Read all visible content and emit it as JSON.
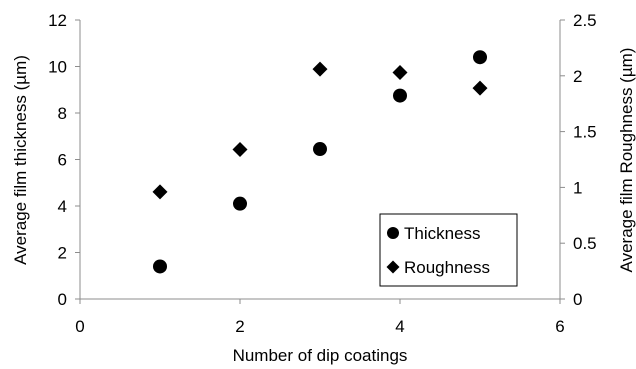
{
  "chart_data": {
    "type": "scatter",
    "xlabel": "Number of dip coatings",
    "ylabel_left": "Average film thickness (µm)",
    "ylabel_right": "Average film Roughness (µm)",
    "xlim": [
      0,
      6
    ],
    "ylim_left": [
      0,
      12
    ],
    "ylim_right": [
      0,
      2.5
    ],
    "x_ticks": [
      "0",
      "2",
      "4",
      "6"
    ],
    "y_ticks_left": [
      "0",
      "2",
      "4",
      "6",
      "8",
      "10",
      "12"
    ],
    "y_ticks_right": [
      "0",
      "0.5",
      "1",
      "1.5",
      "2",
      "2.5"
    ],
    "grid": false,
    "legend_position": "lower-right",
    "series": [
      {
        "name": "Thickness",
        "axis": "left",
        "marker": "circle",
        "color": "#000000",
        "x": [
          1,
          2,
          3,
          4,
          5
        ],
        "y": [
          1.4,
          4.1,
          6.45,
          8.75,
          10.4
        ]
      },
      {
        "name": "Roughness",
        "axis": "right",
        "marker": "diamond",
        "color": "#000000",
        "x": [
          1,
          2,
          3,
          4,
          5
        ],
        "y": [
          0.96,
          1.34,
          2.06,
          2.03,
          1.89
        ]
      }
    ]
  }
}
